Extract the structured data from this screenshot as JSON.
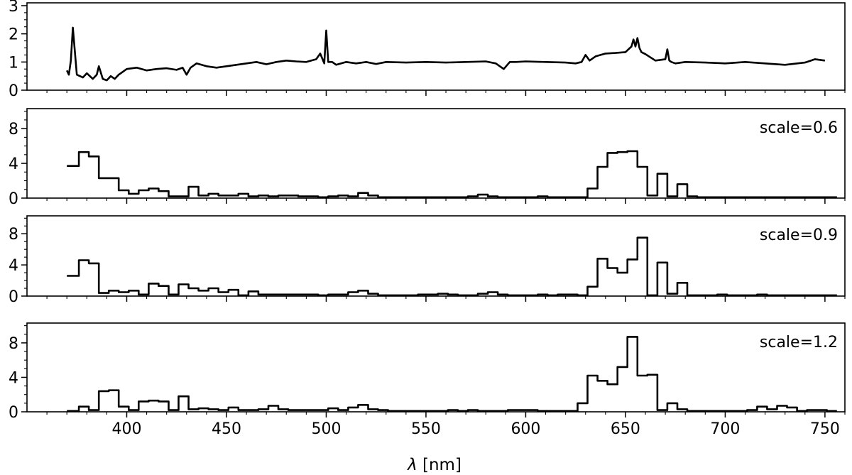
{
  "chart_data": [
    {
      "type": "line",
      "panel": "top",
      "xlim": [
        350,
        760
      ],
      "ylim": [
        0,
        3.1
      ],
      "yticks": [
        "0",
        "1",
        "2",
        "3"
      ],
      "annotation": "",
      "series": [
        {
          "x": [
            370,
            371,
            372,
            373,
            375,
            378,
            380,
            383,
            385,
            386,
            388,
            390,
            392,
            394,
            396,
            398,
            400,
            405,
            410,
            415,
            420,
            425,
            428,
            430,
            432,
            435,
            440,
            445,
            450,
            455,
            460,
            465,
            470,
            475,
            480,
            485,
            490,
            495,
            497,
            499,
            500,
            501,
            503,
            505,
            510,
            515,
            520,
            525,
            530,
            540,
            550,
            560,
            570,
            580,
            585,
            589,
            592,
            595,
            600,
            610,
            620,
            625,
            628,
            630,
            632,
            635,
            640,
            645,
            650,
            653,
            654,
            655,
            656,
            657,
            658,
            660,
            665,
            670,
            671,
            672,
            673,
            675,
            680,
            690,
            700,
            710,
            720,
            730,
            740,
            745,
            750
          ],
          "y": [
            0.7,
            0.55,
            1.05,
            2.22,
            0.55,
            0.45,
            0.6,
            0.4,
            0.55,
            0.85,
            0.4,
            0.35,
            0.5,
            0.4,
            0.55,
            0.65,
            0.75,
            0.8,
            0.7,
            0.75,
            0.78,
            0.72,
            0.8,
            0.55,
            0.8,
            0.95,
            0.85,
            0.8,
            0.85,
            0.9,
            0.95,
            1.0,
            0.92,
            1.0,
            1.05,
            1.02,
            1.0,
            1.1,
            1.3,
            0.95,
            2.12,
            1.0,
            1.0,
            0.9,
            1.0,
            0.95,
            1.0,
            0.93,
            1.0,
            0.98,
            1.0,
            0.98,
            1.0,
            1.02,
            0.95,
            0.75,
            1.0,
            1.0,
            1.02,
            1.0,
            0.98,
            0.95,
            1.0,
            1.25,
            1.05,
            1.2,
            1.3,
            1.32,
            1.35,
            1.55,
            1.8,
            1.55,
            1.85,
            1.5,
            1.35,
            1.28,
            1.05,
            1.1,
            1.45,
            1.05,
            1.0,
            0.95,
            1.0,
            0.98,
            0.95,
            1.0,
            0.95,
            0.9,
            0.98,
            1.1,
            1.05
          ]
        }
      ]
    },
    {
      "type": "line",
      "panel": "scale-0.6",
      "drawstyle": "steps-post",
      "xlim": [
        350,
        760
      ],
      "ylim": [
        0,
        10.3
      ],
      "yticks": [
        "0",
        "4",
        "8"
      ],
      "annotation": "scale=0.6",
      "series": [
        {
          "x": [
            370,
            376,
            381,
            386,
            391,
            396,
            401,
            406,
            411,
            416,
            421,
            426,
            431,
            436,
            441,
            446,
            451,
            456,
            461,
            466,
            471,
            476,
            481,
            486,
            491,
            496,
            501,
            506,
            511,
            516,
            521,
            526,
            531,
            536,
            541,
            546,
            551,
            556,
            561,
            566,
            571,
            576,
            581,
            586,
            591,
            596,
            601,
            606,
            611,
            616,
            621,
            626,
            631,
            636,
            641,
            646,
            651,
            656,
            661,
            666,
            671,
            676,
            681,
            686,
            691,
            696,
            701,
            706,
            711,
            716,
            721,
            726,
            731,
            736,
            741,
            746,
            751
          ],
          "y": [
            3.7,
            5.3,
            4.8,
            2.3,
            2.3,
            0.9,
            0.5,
            0.9,
            1.1,
            0.8,
            0.2,
            0.2,
            1.3,
            0.3,
            0.5,
            0.3,
            0.3,
            0.5,
            0.2,
            0.3,
            0.2,
            0.3,
            0.3,
            0.2,
            0.2,
            0.1,
            0.2,
            0.3,
            0.2,
            0.6,
            0.3,
            0.1,
            0.1,
            0.1,
            0.1,
            0.1,
            0.1,
            0.1,
            0.1,
            0.1,
            0.2,
            0.4,
            0.2,
            0.1,
            0.1,
            0.1,
            0.1,
            0.2,
            0.1,
            0.1,
            0.1,
            0.1,
            1.1,
            3.6,
            5.2,
            5.3,
            5.4,
            3.6,
            0.3,
            2.8,
            0.2,
            1.6,
            0.2,
            0.1,
            0.1,
            0.1,
            0.1,
            0.1,
            0.1,
            0.1,
            0.1,
            0.1,
            0.1,
            0.1,
            0.1,
            0.1,
            0.1
          ]
        }
      ]
    },
    {
      "type": "line",
      "panel": "scale-0.9",
      "drawstyle": "steps-post",
      "xlim": [
        350,
        760
      ],
      "ylim": [
        0,
        10.3
      ],
      "yticks": [
        "0",
        "4",
        "8"
      ],
      "annotation": "scale=0.9",
      "series": [
        {
          "x": [
            370,
            376,
            381,
            386,
            391,
            396,
            401,
            406,
            411,
            416,
            421,
            426,
            431,
            436,
            441,
            446,
            451,
            456,
            461,
            466,
            471,
            476,
            481,
            486,
            491,
            496,
            501,
            506,
            511,
            516,
            521,
            526,
            531,
            536,
            541,
            546,
            551,
            556,
            561,
            566,
            571,
            576,
            581,
            586,
            591,
            596,
            601,
            606,
            611,
            616,
            621,
            626,
            631,
            636,
            641,
            646,
            651,
            656,
            661,
            666,
            671,
            676,
            681,
            686,
            691,
            696,
            701,
            706,
            711,
            716,
            721,
            726,
            731,
            736,
            741,
            746,
            751
          ],
          "y": [
            2.6,
            4.6,
            4.2,
            0.4,
            0.7,
            0.5,
            0.7,
            0.2,
            1.6,
            1.3,
            0.2,
            1.5,
            1.0,
            0.7,
            1.0,
            0.5,
            0.8,
            0.1,
            0.6,
            0.2,
            0.2,
            0.2,
            0.2,
            0.2,
            0.2,
            0.1,
            0.2,
            0.2,
            0.5,
            0.7,
            0.3,
            0.1,
            0.1,
            0.1,
            0.1,
            0.2,
            0.2,
            0.3,
            0.2,
            0.1,
            0.1,
            0.3,
            0.5,
            0.2,
            0.1,
            0.1,
            0.1,
            0.2,
            0.1,
            0.2,
            0.2,
            0.1,
            1.2,
            4.8,
            3.6,
            3.0,
            4.7,
            7.5,
            0.1,
            4.3,
            0.3,
            1.7,
            0.1,
            0.1,
            0.1,
            0.2,
            0.1,
            0.1,
            0.1,
            0.2,
            0.1,
            0.1,
            0.1,
            0.1,
            0.1,
            0.1,
            0.1
          ]
        }
      ]
    },
    {
      "type": "line",
      "panel": "scale-1.2",
      "drawstyle": "steps-post",
      "xlim": [
        350,
        760
      ],
      "ylim": [
        0,
        10.3
      ],
      "yticks": [
        "0",
        "4",
        "8"
      ],
      "annotation": "scale=1.2",
      "series": [
        {
          "x": [
            370,
            376,
            381,
            386,
            391,
            396,
            401,
            406,
            411,
            416,
            421,
            426,
            431,
            436,
            441,
            446,
            451,
            456,
            461,
            466,
            471,
            476,
            481,
            486,
            491,
            496,
            501,
            506,
            511,
            516,
            521,
            526,
            531,
            536,
            541,
            546,
            551,
            556,
            561,
            566,
            571,
            576,
            581,
            586,
            591,
            596,
            601,
            606,
            611,
            616,
            621,
            626,
            631,
            636,
            641,
            646,
            651,
            656,
            661,
            666,
            671,
            676,
            681,
            686,
            691,
            696,
            701,
            706,
            711,
            716,
            721,
            726,
            731,
            736,
            741,
            746,
            751
          ],
          "y": [
            0.1,
            0.6,
            0.2,
            2.4,
            2.5,
            0.6,
            0.2,
            1.2,
            1.3,
            1.2,
            0.2,
            1.8,
            0.3,
            0.4,
            0.3,
            0.2,
            0.5,
            0.2,
            0.2,
            0.3,
            0.7,
            0.3,
            0.2,
            0.2,
            0.2,
            0.2,
            0.4,
            0.2,
            0.5,
            0.8,
            0.3,
            0.2,
            0.1,
            0.1,
            0.1,
            0.1,
            0.1,
            0.1,
            0.2,
            0.1,
            0.2,
            0.1,
            0.1,
            0.1,
            0.2,
            0.2,
            0.2,
            0.1,
            0.1,
            0.1,
            0.1,
            1.0,
            4.2,
            3.6,
            3.2,
            5.2,
            8.7,
            4.2,
            4.3,
            0.2,
            1.0,
            0.3,
            0.1,
            0.1,
            0.1,
            0.1,
            0.1,
            0.1,
            0.2,
            0.6,
            0.3,
            0.7,
            0.5,
            0.1,
            0.2,
            0.2,
            0.1
          ]
        }
      ]
    }
  ],
  "xaxis": {
    "label": "λ [nm]",
    "label_symbol": "λ",
    "label_unit": " [nm]",
    "ticks": [
      400,
      450,
      500,
      550,
      600,
      650,
      700,
      750
    ]
  }
}
